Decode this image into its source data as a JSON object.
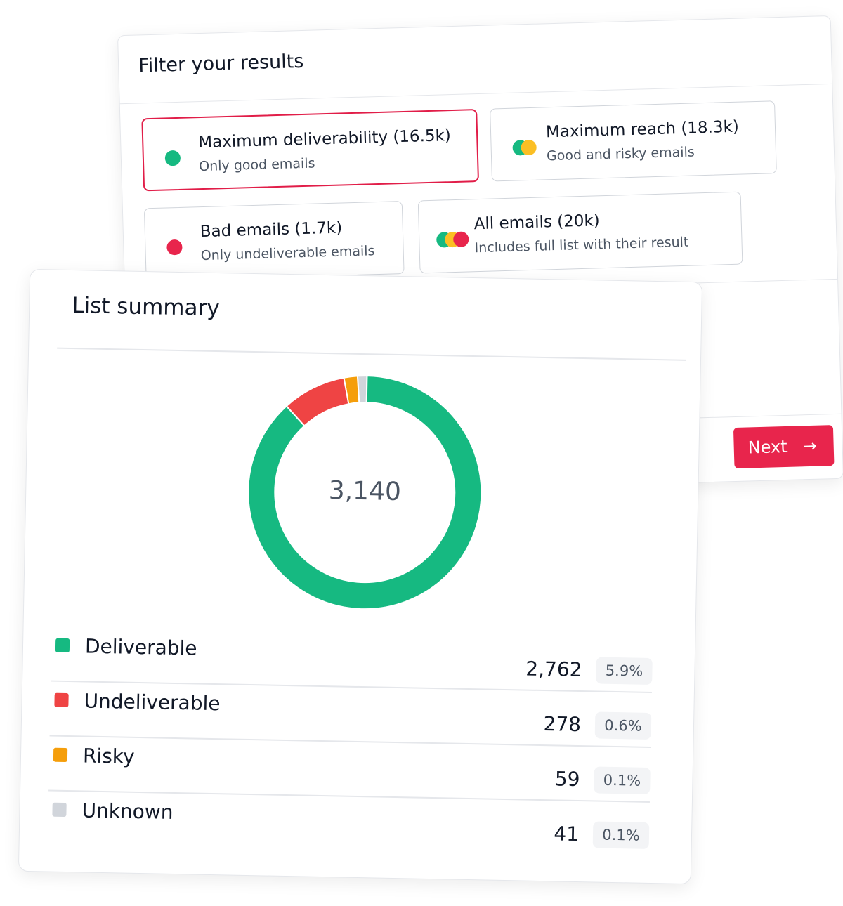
{
  "filter": {
    "title": "Filter your results",
    "options": [
      {
        "label": "Maximum deliverability (16.5k)",
        "subtitle": "Only good emails"
      },
      {
        "label": "Maximum reach (18.3k)",
        "subtitle": "Good and risky emails"
      },
      {
        "label": "Bad emails (1.7k)",
        "subtitle": "Only undeliverable emails"
      },
      {
        "label": "All emails (20k)",
        "subtitle": "Includes full list with their result"
      }
    ],
    "next": "Next"
  },
  "summary": {
    "title": "List summary",
    "total": "3,140",
    "chart_data": {
      "type": "donut",
      "categories": [
        "Deliverable",
        "Undeliverable",
        "Risky",
        "Unknown"
      ],
      "values": [
        2762,
        278,
        59,
        41
      ],
      "value_labels": [
        "2,762",
        "278",
        "59",
        "41"
      ],
      "percent_labels": [
        "5.9%",
        "0.6%",
        "0.1%",
        "0.1%"
      ],
      "colors": [
        "#16b981",
        "#ef4444",
        "#f59e0b",
        "#d1d5db"
      ]
    }
  }
}
